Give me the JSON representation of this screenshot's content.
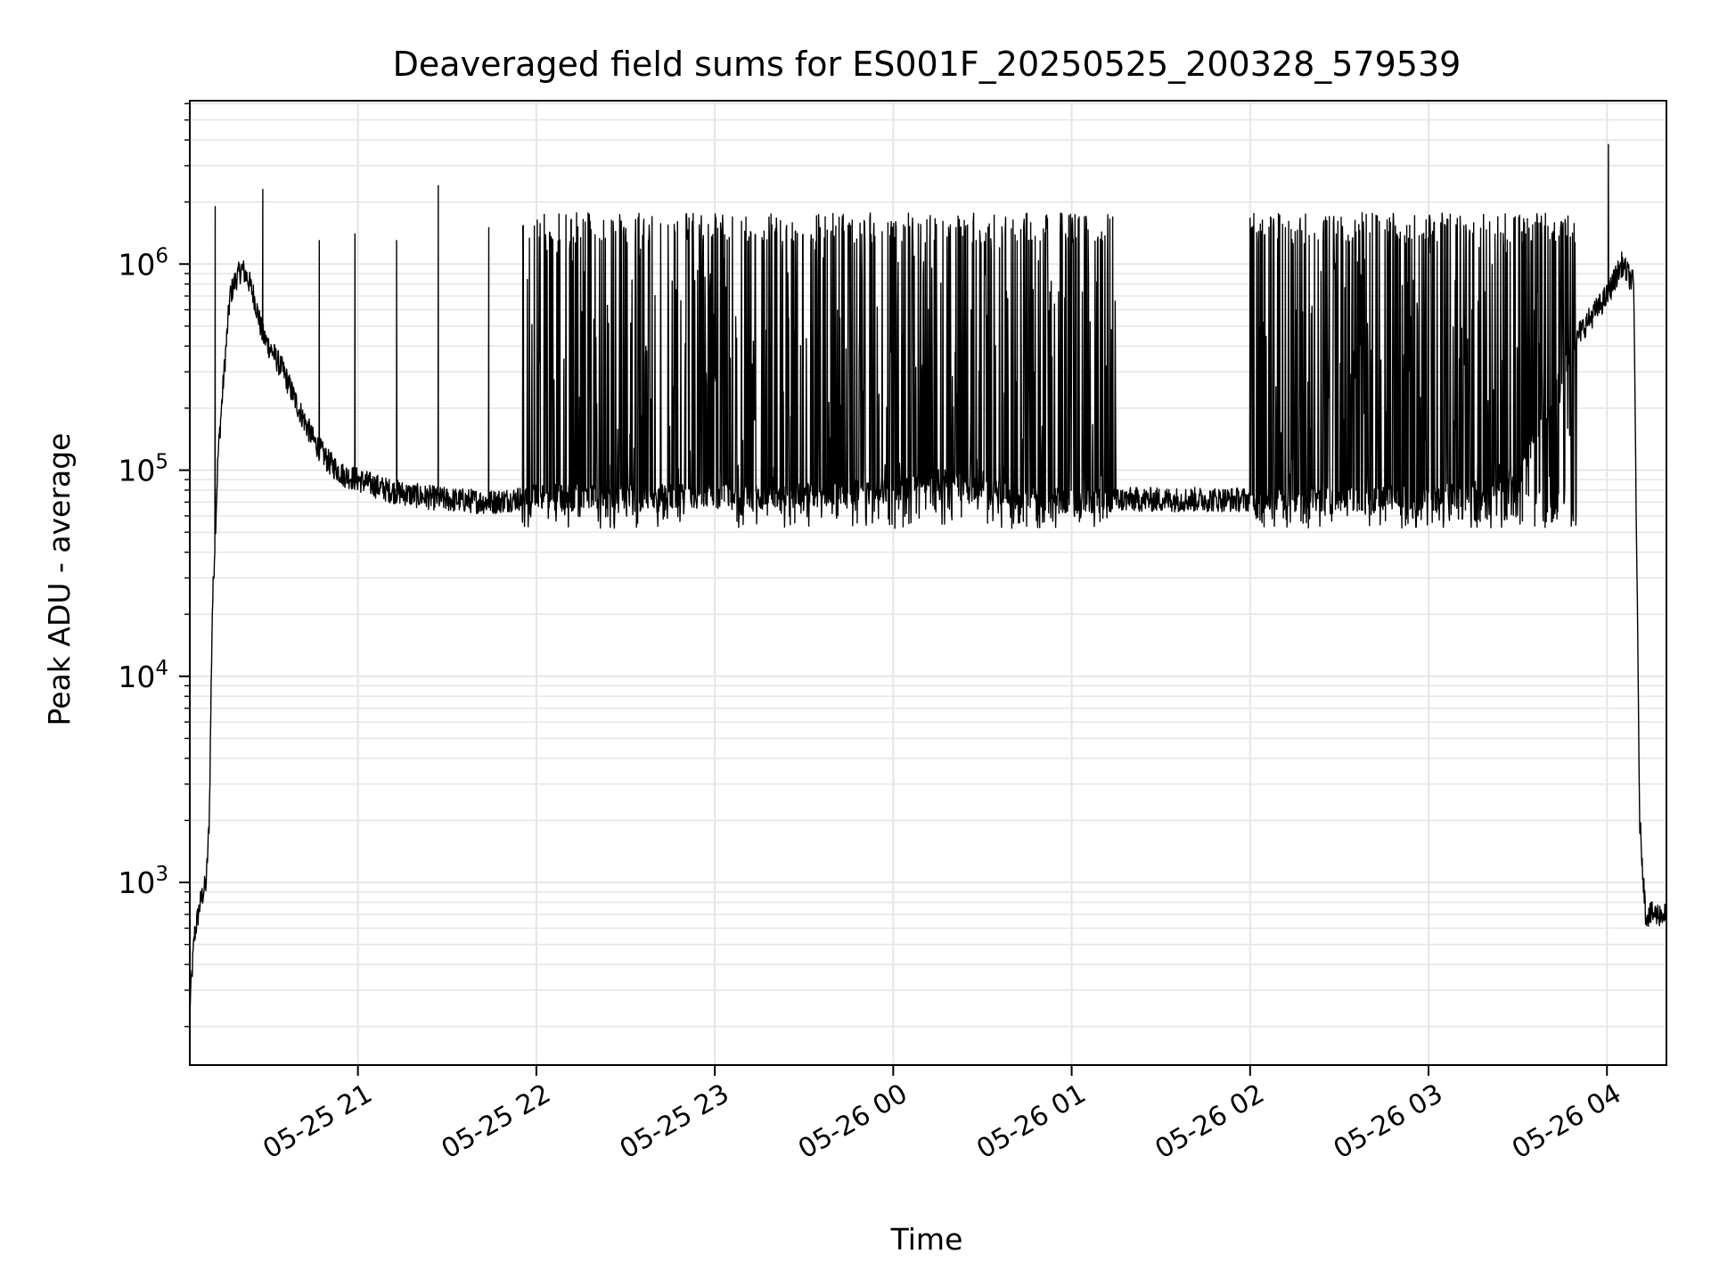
{
  "chart_data": {
    "type": "line",
    "title": "Deaveraged field sums for ES001F_20250525_200328_579539",
    "xlabel": "Time",
    "ylabel": "Peak ADU - average",
    "y_scale": "log",
    "ylim": [
      130,
      6200000
    ],
    "xlim": [
      "2025-05-25 20:03:28",
      "2025-05-26 04:20:00"
    ],
    "grid": true,
    "line_color": "#000000",
    "grid_color": "#e6e6e6",
    "x_ticks": [
      {
        "label": "05-25 21",
        "value": "2025-05-25 21:00"
      },
      {
        "label": "05-25 22",
        "value": "2025-05-25 22:00"
      },
      {
        "label": "05-25 23",
        "value": "2025-05-25 23:00"
      },
      {
        "label": "05-26 00",
        "value": "2025-05-26 00:00"
      },
      {
        "label": "05-26 01",
        "value": "2025-05-26 01:00"
      },
      {
        "label": "05-26 02",
        "value": "2025-05-26 02:00"
      },
      {
        "label": "05-26 03",
        "value": "2025-05-26 03:00"
      },
      {
        "label": "05-26 04",
        "value": "2025-05-26 04:00"
      }
    ],
    "y_ticks": [
      {
        "base": "10",
        "exp": "3",
        "value": 1000
      },
      {
        "base": "10",
        "exp": "4",
        "value": 10000
      },
      {
        "base": "10",
        "exp": "5",
        "value": 100000
      },
      {
        "base": "10",
        "exp": "6",
        "value": 1000000
      }
    ],
    "series": [
      {
        "x": [
          "2025-05-25 20:03:28",
          "2025-05-25 20:05",
          "2025-05-25 20:07",
          "2025-05-25 20:09",
          "2025-05-25 20:10",
          "2025-05-25 20:11",
          "2025-05-25 20:13",
          "2025-05-25 20:15",
          "2025-05-25 20:17",
          "2025-05-25 20:19",
          "2025-05-25 20:21",
          "2025-05-25 20:23",
          "2025-05-25 20:25",
          "2025-05-25 20:28",
          "2025-05-25 20:31",
          "2025-05-25 20:35",
          "2025-05-25 20:40",
          "2025-05-25 20:45",
          "2025-05-25 20:50",
          "2025-05-25 20:55",
          "2025-05-25 21:00",
          "2025-05-25 21:10",
          "2025-05-25 21:20",
          "2025-05-25 21:30",
          "2025-05-25 21:45",
          "2025-05-25 22:00",
          "2025-05-25 22:30",
          "2025-05-25 23:00",
          "2025-05-25 23:30",
          "2025-05-26 00:00",
          "2025-05-26 00:15",
          "2025-05-26 00:30",
          "2025-05-26 00:45",
          "2025-05-26 01:00",
          "2025-05-26 01:15",
          "2025-05-26 01:30",
          "2025-05-26 02:00",
          "2025-05-26 02:30",
          "2025-05-26 03:00",
          "2025-05-26 03:15",
          "2025-05-26 03:30",
          "2025-05-26 03:40",
          "2025-05-26 03:50",
          "2025-05-26 04:00",
          "2025-05-26 04:05",
          "2025-05-26 04:09",
          "2025-05-26 04:11",
          "2025-05-26 04:13",
          "2025-05-26 04:20"
        ],
        "y": [
          250,
          550,
          800,
          1000,
          2000,
          20000,
          120000,
          300000,
          700000,
          850000,
          950000,
          850000,
          700000,
          450000,
          380000,
          300000,
          200000,
          140000,
          110000,
          95000,
          90000,
          80000,
          75000,
          72000,
          70000,
          75000,
          75000,
          75000,
          75000,
          80000,
          90000,
          80000,
          75000,
          70000,
          72000,
          72000,
          72000,
          72000,
          75000,
          80000,
          90000,
          200000,
          450000,
          700000,
          1000000,
          800000,
          2000,
          700,
          700
        ]
      }
    ],
    "spikes": {
      "x": [
        "2025-05-25 20:12:00",
        "2025-05-25 20:28:00",
        "2025-05-25 20:47:00",
        "2025-05-25 20:59:00",
        "2025-05-25 21:13:00",
        "2025-05-25 21:27:00",
        "2025-05-25 21:44:00",
        "2025-05-26 04:00:30"
      ],
      "y": [
        1900000,
        2300000,
        1300000,
        1400000,
        1300000,
        2400000,
        1500000,
        3800000
      ]
    },
    "dense_bands": [
      {
        "from": "2025-05-25 21:55",
        "to": "2025-05-26 01:15",
        "low": 60000,
        "high": 1600000,
        "density": 0.55
      },
      {
        "from": "2025-05-26 02:00",
        "to": "2025-05-26 03:50",
        "low": 60000,
        "high": 1600000,
        "density": 0.7
      }
    ]
  }
}
